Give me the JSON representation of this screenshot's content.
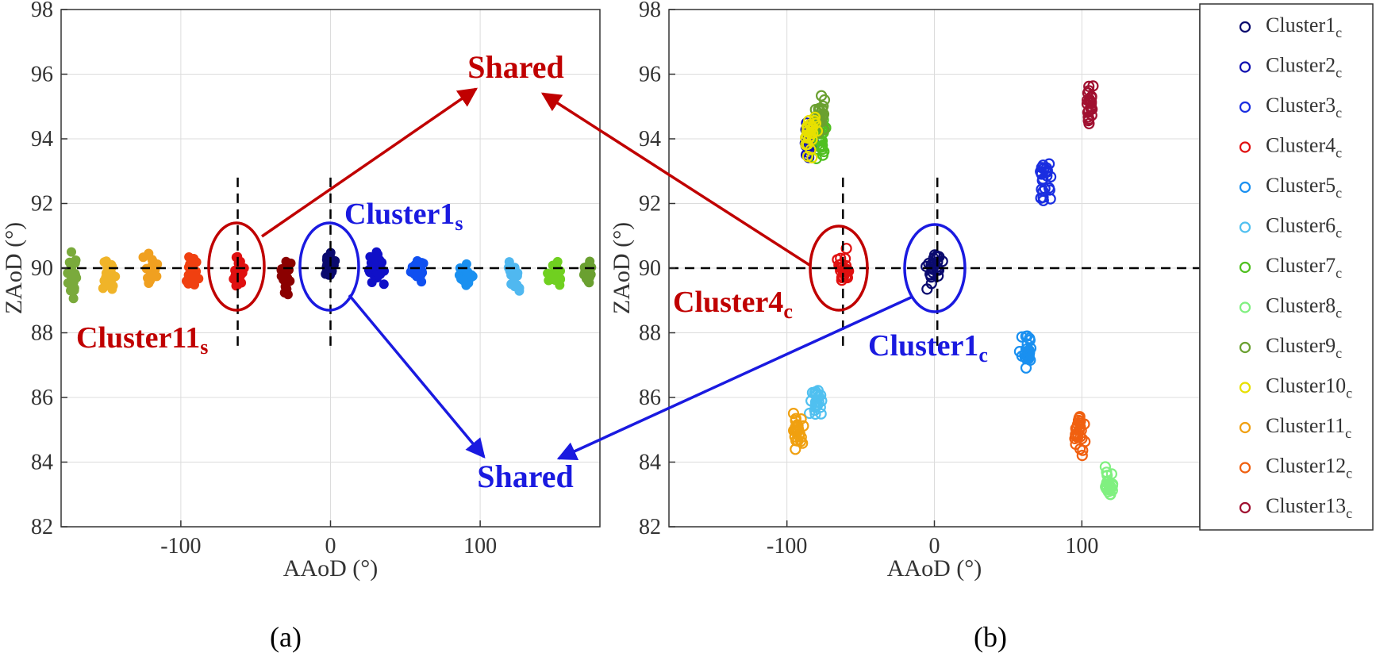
{
  "chart_data": [
    {
      "panel_label": "(a)",
      "type": "scatter",
      "xlabel": "AAoD (°)",
      "ylabel": "ZAoD (°)",
      "xlim": [
        -180,
        180
      ],
      "ylim": [
        82,
        98
      ],
      "xticks": [
        -100,
        0,
        100
      ],
      "yticks": [
        82,
        84,
        86,
        88,
        90,
        92,
        94,
        96,
        98
      ],
      "grid": true,
      "marker": "filled-circle",
      "reference_lines": {
        "x": [
          -62,
          0
        ],
        "y": 90
      },
      "clusters": [
        {
          "color": "#7aaa3c",
          "center": [
            -173,
            89.9
          ],
          "spread": [
            5,
            0.9
          ]
        },
        {
          "color": "#f0b429",
          "center": [
            -148,
            89.9
          ],
          "spread": [
            6,
            0.8
          ]
        },
        {
          "color": "#f0a020",
          "center": [
            -120,
            89.9
          ],
          "spread": [
            7,
            0.7
          ]
        },
        {
          "color": "#f04010",
          "center": [
            -92,
            89.9
          ],
          "spread": [
            6,
            0.7
          ]
        },
        {
          "color": "#e01010",
          "center": [
            -62,
            89.9
          ],
          "spread": [
            5,
            0.7
          ]
        },
        {
          "color": "#8b0000",
          "center": [
            -30,
            89.7
          ],
          "spread": [
            6,
            0.8
          ]
        },
        {
          "color": "#0a0a6e",
          "center": [
            0,
            90.0
          ],
          "spread": [
            5,
            0.8
          ]
        },
        {
          "color": "#1010c8",
          "center": [
            30,
            89.9
          ],
          "spread": [
            7,
            0.7
          ]
        },
        {
          "color": "#1050f0",
          "center": [
            58,
            89.9
          ],
          "spread": [
            6,
            0.6
          ]
        },
        {
          "color": "#1a90f0",
          "center": [
            90,
            89.9
          ],
          "spread": [
            6,
            0.6
          ]
        },
        {
          "color": "#50b8f0",
          "center": [
            122,
            89.8
          ],
          "spread": [
            6,
            0.8
          ]
        },
        {
          "color": "#70d020",
          "center": [
            150,
            89.8
          ],
          "spread": [
            6,
            0.6
          ]
        },
        {
          "color": "#6aa030",
          "center": [
            172,
            89.8
          ],
          "spread": [
            4,
            0.5
          ]
        }
      ],
      "annotations": {
        "cluster11_base": "Cluster11",
        "cluster11_sub": "s",
        "cluster1_base": "Cluster1",
        "cluster1_sub": "s",
        "shared_top": "Shared",
        "shared_bottom": "Shared"
      }
    },
    {
      "panel_label": "(b)",
      "type": "scatter",
      "xlabel": "AAoD (°)",
      "ylabel": "ZAoD (°)",
      "xlim": [
        -180,
        180
      ],
      "ylim": [
        82,
        98
      ],
      "xticks": [
        -100,
        0,
        100
      ],
      "yticks": [
        82,
        84,
        86,
        88,
        90,
        92,
        94,
        96,
        98
      ],
      "grid": true,
      "marker": "open-circle",
      "reference_lines": {
        "x": [
          -62,
          2
        ],
        "y": 90
      },
      "clusters": [
        {
          "name": "Cluster1",
          "sub": "c",
          "color": "#0a0a6e",
          "center": [
            0,
            90.0
          ],
          "spread": [
            7,
            0.8
          ]
        },
        {
          "name": "Cluster2",
          "sub": "c",
          "color": "#1010b0",
          "center": [
            -85,
            94.0
          ],
          "spread": [
            5,
            0.8
          ]
        },
        {
          "name": "Cluster3",
          "sub": "c",
          "color": "#1a2ee0",
          "center": [
            75,
            92.7
          ],
          "spread": [
            7,
            1.0
          ]
        },
        {
          "name": "Cluster4",
          "sub": "c",
          "color": "#e01010",
          "center": [
            -62,
            90.0
          ],
          "spread": [
            6,
            0.8
          ]
        },
        {
          "name": "Cluster5",
          "sub": "c",
          "color": "#1a90f0",
          "center": [
            62,
            87.5
          ],
          "spread": [
            6,
            0.9
          ]
        },
        {
          "name": "Cluster6",
          "sub": "c",
          "color": "#50c0f0",
          "center": [
            -80,
            85.9
          ],
          "spread": [
            6,
            0.8
          ]
        },
        {
          "name": "Cluster7",
          "sub": "c",
          "color": "#50c020",
          "center": [
            -77,
            94.0
          ],
          "spread": [
            5,
            0.9
          ]
        },
        {
          "name": "Cluster8",
          "sub": "c",
          "color": "#80f080",
          "center": [
            118,
            83.4
          ],
          "spread": [
            6,
            0.7
          ]
        },
        {
          "name": "Cluster9",
          "sub": "c",
          "color": "#6aa030",
          "center": [
            -78,
            94.7
          ],
          "spread": [
            5,
            0.8
          ]
        },
        {
          "name": "Cluster10",
          "sub": "c",
          "color": "#e8e000",
          "center": [
            -84,
            94.1
          ],
          "spread": [
            6,
            0.9
          ]
        },
        {
          "name": "Cluster11",
          "sub": "c",
          "color": "#f0a010",
          "center": [
            -93,
            84.9
          ],
          "spread": [
            6,
            0.8
          ]
        },
        {
          "name": "Cluster12",
          "sub": "c",
          "color": "#f06010",
          "center": [
            98,
            84.9
          ],
          "spread": [
            6,
            0.8
          ]
        },
        {
          "name": "Cluster13",
          "sub": "c",
          "color": "#a01030",
          "center": [
            105,
            95.0
          ],
          "spread": [
            5,
            0.8
          ]
        }
      ],
      "annotations": {
        "cluster4_base": "Cluster4",
        "cluster4_sub": "c",
        "cluster1_base": "Cluster1",
        "cluster1_sub": "c"
      },
      "legend_position": "right"
    }
  ],
  "colors": {
    "annotation_red": "#c00000",
    "annotation_blue": "#1a1ae0"
  }
}
